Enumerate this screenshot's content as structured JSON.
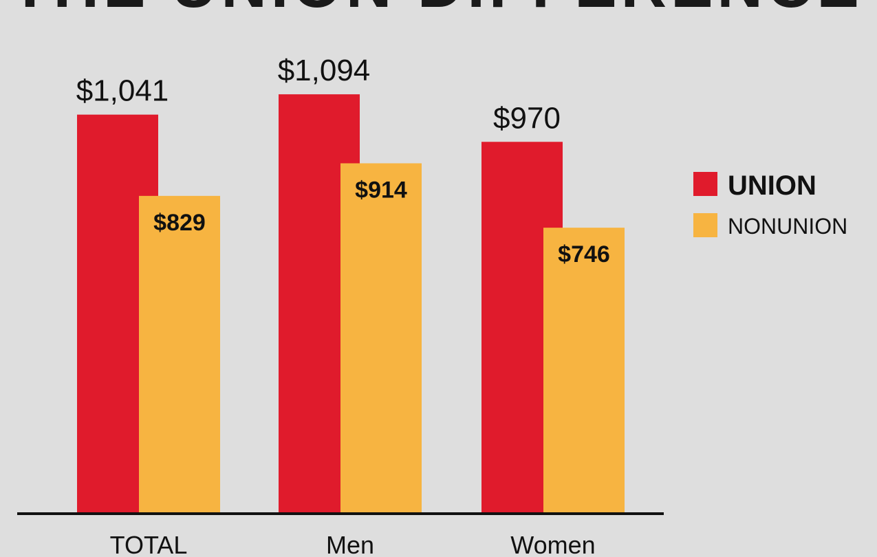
{
  "title": "THE UNION DIFFERENCE",
  "colors": {
    "union": "#e01b2c",
    "nonunion": "#f7b441",
    "background": "#dedede",
    "baseline": "#111111"
  },
  "chart_data": {
    "type": "bar",
    "title": "THE UNION DIFFERENCE",
    "categories": [
      "TOTAL",
      "Men",
      "Women"
    ],
    "series": [
      {
        "name": "UNION",
        "values": [
          1041,
          1094,
          970
        ],
        "labels": [
          "$1,041",
          "$1,094",
          "$970"
        ]
      },
      {
        "name": "NONUNION",
        "values": [
          829,
          914,
          746
        ],
        "labels": [
          "$829",
          "$914",
          "$746"
        ]
      }
    ],
    "ylim": [
      0,
      1340
    ],
    "grid": false,
    "legend_position": "right"
  }
}
